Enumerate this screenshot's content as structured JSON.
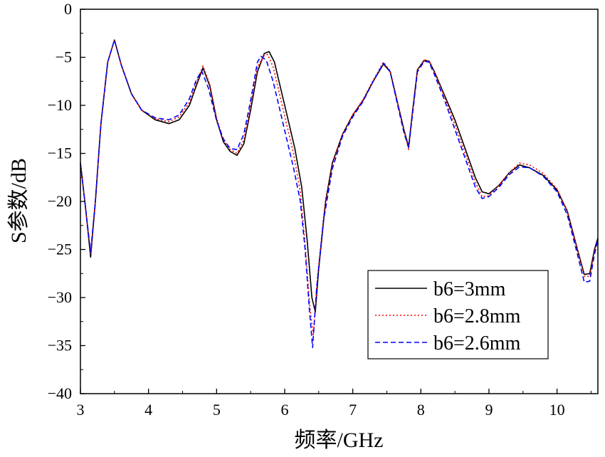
{
  "chart_data": {
    "type": "line",
    "xlabel": "频率/GHz",
    "ylabel": "S参数/dB",
    "xlim": [
      3,
      10.6
    ],
    "ylim": [
      -40,
      0
    ],
    "xticks": [
      3,
      4,
      5,
      6,
      7,
      8,
      9,
      10
    ],
    "yticks": [
      0,
      -5,
      -10,
      -15,
      -20,
      -25,
      -30,
      -35,
      -40
    ],
    "grid": false,
    "legend_position": "bottom-right",
    "series": [
      {
        "name": "b6=3mm",
        "color": "#000000",
        "dash": "solid",
        "x": [
          3.0,
          3.08,
          3.15,
          3.22,
          3.3,
          3.4,
          3.5,
          3.6,
          3.75,
          3.9,
          4.1,
          4.3,
          4.45,
          4.6,
          4.7,
          4.8,
          4.9,
          5.0,
          5.1,
          5.2,
          5.3,
          5.4,
          5.5,
          5.6,
          5.7,
          5.77,
          5.85,
          5.95,
          6.05,
          6.15,
          6.25,
          6.33,
          6.4,
          6.45,
          6.5,
          6.6,
          6.7,
          6.85,
          7.0,
          7.15,
          7.3,
          7.45,
          7.55,
          7.65,
          7.75,
          7.82,
          7.88,
          7.95,
          8.05,
          8.12,
          8.2,
          8.35,
          8.5,
          8.65,
          8.8,
          8.9,
          9.0,
          9.15,
          9.3,
          9.45,
          9.6,
          9.8,
          10.0,
          10.15,
          10.3,
          10.4,
          10.48,
          10.55,
          10.6
        ],
        "y": [
          -16,
          -21,
          -25.8,
          -20,
          -12,
          -5.5,
          -3.2,
          -5.8,
          -8.8,
          -10.5,
          -11.5,
          -11.9,
          -11.5,
          -10,
          -8,
          -6.1,
          -8,
          -11.5,
          -13.8,
          -14.8,
          -15.2,
          -14,
          -10.5,
          -6.5,
          -4.6,
          -4.4,
          -5.5,
          -8.5,
          -11.5,
          -14.5,
          -18.5,
          -24,
          -30,
          -31.5,
          -27,
          -20,
          -16,
          -13,
          -11,
          -9.5,
          -7.5,
          -5.7,
          -6.5,
          -9.5,
          -12.5,
          -14.3,
          -10.5,
          -6.3,
          -5.3,
          -5.4,
          -6.5,
          -9,
          -11.5,
          -14.5,
          -17.5,
          -19,
          -19.2,
          -18.3,
          -17,
          -16.2,
          -16.5,
          -17.3,
          -18.8,
          -21,
          -25,
          -27.6,
          -27.5,
          -25,
          -23.8
        ]
      },
      {
        "name": "b6=2.8mm",
        "color": "#ff0000",
        "dash": "dotted",
        "x": [
          3.0,
          3.08,
          3.15,
          3.22,
          3.3,
          3.4,
          3.5,
          3.6,
          3.75,
          3.9,
          4.1,
          4.3,
          4.45,
          4.6,
          4.7,
          4.8,
          4.9,
          5.0,
          5.1,
          5.2,
          5.3,
          5.4,
          5.5,
          5.6,
          5.7,
          5.75,
          5.83,
          5.93,
          6.03,
          6.13,
          6.23,
          6.3,
          6.37,
          6.42,
          6.48,
          6.58,
          6.7,
          6.85,
          7.0,
          7.15,
          7.3,
          7.45,
          7.55,
          7.65,
          7.75,
          7.82,
          7.88,
          7.95,
          8.05,
          8.12,
          8.2,
          8.35,
          8.5,
          8.65,
          8.8,
          8.9,
          9.0,
          9.15,
          9.3,
          9.45,
          9.6,
          9.8,
          10.0,
          10.15,
          10.3,
          10.4,
          10.48,
          10.55,
          10.6
        ],
        "y": [
          -16,
          -21,
          -25.5,
          -20,
          -12,
          -5.5,
          -3.2,
          -5.8,
          -8.8,
          -10.5,
          -11.4,
          -11.7,
          -11.2,
          -9.7,
          -7.7,
          -5.9,
          -7.8,
          -11.3,
          -13.6,
          -14.6,
          -15,
          -13.6,
          -10,
          -6,
          -4.8,
          -4.7,
          -6,
          -9,
          -12,
          -15,
          -19,
          -24.5,
          -31,
          -34,
          -28,
          -21,
          -16.2,
          -13,
          -11,
          -9.4,
          -7.4,
          -5.5,
          -6.4,
          -9.5,
          -12.5,
          -14.6,
          -10.5,
          -6.3,
          -5.3,
          -5.4,
          -6.5,
          -9.2,
          -12,
          -15,
          -18,
          -19.5,
          -19.4,
          -18.3,
          -17,
          -16,
          -16.2,
          -17.1,
          -18.7,
          -21,
          -25,
          -27.8,
          -27.8,
          -25.2,
          -24
        ]
      },
      {
        "name": "b6=2.6mm",
        "color": "#0000ff",
        "dash": "dashed",
        "x": [
          3.0,
          3.08,
          3.15,
          3.22,
          3.3,
          3.4,
          3.5,
          3.6,
          3.75,
          3.9,
          4.1,
          4.3,
          4.45,
          4.6,
          4.7,
          4.78,
          4.88,
          5.0,
          5.1,
          5.2,
          5.3,
          5.4,
          5.5,
          5.6,
          5.65,
          5.73,
          5.83,
          5.93,
          6.03,
          6.13,
          6.23,
          6.3,
          6.36,
          6.41,
          6.47,
          6.57,
          6.7,
          6.85,
          7.0,
          7.15,
          7.3,
          7.45,
          7.55,
          7.65,
          7.75,
          7.82,
          7.88,
          7.95,
          8.05,
          8.12,
          8.2,
          8.35,
          8.5,
          8.65,
          8.8,
          8.9,
          9.0,
          9.15,
          9.3,
          9.45,
          9.6,
          9.8,
          10.0,
          10.15,
          10.3,
          10.4,
          10.48,
          10.55,
          10.6
        ],
        "y": [
          -16,
          -21,
          -25.3,
          -20,
          -12,
          -5.5,
          -3.2,
          -5.8,
          -8.8,
          -10.5,
          -11.3,
          -11.5,
          -11,
          -9.3,
          -7.4,
          -6.4,
          -8.2,
          -11.6,
          -13.5,
          -14.5,
          -14.6,
          -13,
          -9.5,
          -5.5,
          -4.9,
          -5.3,
          -7.5,
          -10.5,
          -13.5,
          -16.5,
          -20,
          -25,
          -31,
          -35.2,
          -29,
          -22,
          -16.6,
          -13.2,
          -11.2,
          -9.6,
          -7.5,
          -5.6,
          -6.5,
          -9.7,
          -12.8,
          -14.4,
          -10.8,
          -6.5,
          -5.4,
          -5.5,
          -6.8,
          -9.5,
          -12.5,
          -15.5,
          -18.5,
          -19.7,
          -19.5,
          -18.5,
          -17.2,
          -16.4,
          -16.5,
          -17.4,
          -19,
          -21.4,
          -25.5,
          -28.4,
          -28.3,
          -25.5,
          -24
        ]
      }
    ]
  }
}
